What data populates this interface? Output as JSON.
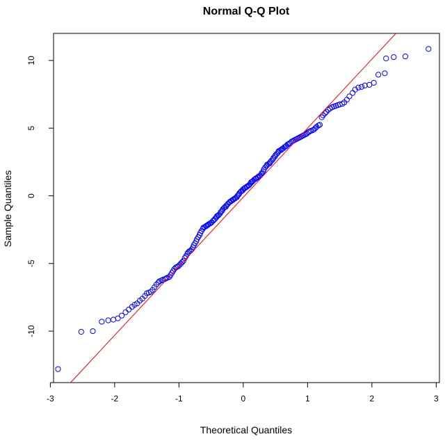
{
  "chart_data": {
    "type": "scatter",
    "title": "Normal Q-Q Plot",
    "xlabel": "Theoretical Quantiles",
    "ylabel": "Sample Quantiles",
    "xlim": [
      -2.95,
      3.05
    ],
    "ylim": [
      -13.8,
      12.0
    ],
    "x_ticks": [
      -3,
      -2,
      -1,
      0,
      1,
      2,
      3
    ],
    "y_ticks": [
      -10,
      -5,
      0,
      5,
      10
    ],
    "grid": false,
    "colors": {
      "points": "#0000ff",
      "line": "#ff0000",
      "axes": "#000000"
    },
    "reference_line": {
      "intercept": -0.1,
      "slope": 5.1
    },
    "series": [
      {
        "values": [
          [
            -2.88,
            -12.8
          ],
          [
            -2.52,
            -10.05
          ],
          [
            -2.34,
            -10.0
          ],
          [
            -2.2,
            -9.3
          ],
          [
            -2.1,
            -9.2
          ],
          [
            -2.02,
            -9.15
          ],
          [
            -1.95,
            -9.05
          ],
          [
            -1.89,
            -8.85
          ],
          [
            -1.83,
            -8.6
          ],
          [
            -1.78,
            -8.4
          ],
          [
            -1.73,
            -8.2
          ],
          [
            -1.69,
            -8.05
          ],
          [
            -1.65,
            -7.95
          ],
          [
            -1.61,
            -7.75
          ],
          [
            -1.57,
            -7.6
          ],
          [
            -1.53,
            -7.4
          ],
          [
            -1.5,
            -7.2
          ],
          [
            -1.47,
            -7.15
          ],
          [
            -1.44,
            -7.1
          ],
          [
            -1.41,
            -6.95
          ],
          [
            -1.38,
            -6.75
          ],
          [
            -1.35,
            -6.55
          ],
          [
            -1.32,
            -6.4
          ],
          [
            -1.3,
            -6.3
          ],
          [
            -1.27,
            -6.25
          ],
          [
            -1.25,
            -6.2
          ],
          [
            -1.22,
            -6.15
          ],
          [
            -1.2,
            -6.1
          ],
          [
            -1.18,
            -6.05
          ],
          [
            -1.15,
            -6.0
          ],
          [
            -1.13,
            -5.85
          ],
          [
            -1.11,
            -5.7
          ],
          [
            -1.09,
            -5.55
          ],
          [
            -1.07,
            -5.4
          ],
          [
            -1.05,
            -5.3
          ],
          [
            -1.03,
            -5.25
          ],
          [
            -1.01,
            -5.2
          ],
          [
            -0.99,
            -5.1
          ],
          [
            -0.97,
            -5.0
          ],
          [
            -0.95,
            -4.9
          ],
          [
            -0.93,
            -4.8
          ],
          [
            -0.91,
            -4.6
          ],
          [
            -0.89,
            -4.45
          ],
          [
            -0.87,
            -4.3
          ],
          [
            -0.86,
            -4.2
          ],
          [
            -0.84,
            -4.1
          ],
          [
            -0.82,
            -4.05
          ],
          [
            -0.8,
            -3.95
          ],
          [
            -0.78,
            -3.8
          ],
          [
            -0.77,
            -3.65
          ],
          [
            -0.75,
            -3.5
          ],
          [
            -0.73,
            -3.35
          ],
          [
            -0.72,
            -3.2
          ],
          [
            -0.7,
            -3.05
          ],
          [
            -0.68,
            -2.9
          ],
          [
            -0.67,
            -2.75
          ],
          [
            -0.65,
            -2.6
          ],
          [
            -0.63,
            -2.45
          ],
          [
            -0.62,
            -2.35
          ],
          [
            -0.6,
            -2.3
          ],
          [
            -0.58,
            -2.25
          ],
          [
            -0.57,
            -2.2
          ],
          [
            -0.55,
            -2.15
          ],
          [
            -0.54,
            -2.1
          ],
          [
            -0.52,
            -2.05
          ],
          [
            -0.5,
            -2.0
          ],
          [
            -0.49,
            -1.95
          ],
          [
            -0.47,
            -1.85
          ],
          [
            -0.46,
            -1.8
          ],
          [
            -0.44,
            -1.7
          ],
          [
            -0.42,
            -1.6
          ],
          [
            -0.41,
            -1.5
          ],
          [
            -0.39,
            -1.45
          ],
          [
            -0.38,
            -1.4
          ],
          [
            -0.36,
            -1.3
          ],
          [
            -0.35,
            -1.2
          ],
          [
            -0.33,
            -1.1
          ],
          [
            -0.32,
            -1.0
          ],
          [
            -0.3,
            -0.9
          ],
          [
            -0.29,
            -0.85
          ],
          [
            -0.27,
            -0.8
          ],
          [
            -0.26,
            -0.7
          ],
          [
            -0.24,
            -0.6
          ],
          [
            -0.22,
            -0.5
          ],
          [
            -0.21,
            -0.45
          ],
          [
            -0.19,
            -0.4
          ],
          [
            -0.18,
            -0.35
          ],
          [
            -0.16,
            -0.3
          ],
          [
            -0.15,
            -0.25
          ],
          [
            -0.13,
            -0.2
          ],
          [
            -0.12,
            -0.15
          ],
          [
            -0.1,
            -0.1
          ],
          [
            -0.09,
            0.0
          ],
          [
            -0.07,
            0.1
          ],
          [
            -0.06,
            0.2
          ],
          [
            -0.04,
            0.3
          ],
          [
            -0.03,
            0.35
          ],
          [
            -0.01,
            0.4
          ],
          [
            0.0,
            0.5
          ],
          [
            0.02,
            0.55
          ],
          [
            0.03,
            0.6
          ],
          [
            0.05,
            0.65
          ],
          [
            0.06,
            0.7
          ],
          [
            0.08,
            0.75
          ],
          [
            0.09,
            0.8
          ],
          [
            0.11,
            0.9
          ],
          [
            0.12,
            1.0
          ],
          [
            0.14,
            1.05
          ],
          [
            0.15,
            1.1
          ],
          [
            0.17,
            1.2
          ],
          [
            0.19,
            1.25
          ],
          [
            0.2,
            1.3
          ],
          [
            0.22,
            1.35
          ],
          [
            0.23,
            1.4
          ],
          [
            0.25,
            1.45
          ],
          [
            0.26,
            1.5
          ],
          [
            0.28,
            1.6
          ],
          [
            0.29,
            1.7
          ],
          [
            0.31,
            1.8
          ],
          [
            0.32,
            1.95
          ],
          [
            0.34,
            2.1
          ],
          [
            0.36,
            2.2
          ],
          [
            0.37,
            2.3
          ],
          [
            0.39,
            2.35
          ],
          [
            0.41,
            2.4
          ],
          [
            0.42,
            2.5
          ],
          [
            0.44,
            2.6
          ],
          [
            0.46,
            2.7
          ],
          [
            0.47,
            2.8
          ],
          [
            0.49,
            2.9
          ],
          [
            0.5,
            3.0
          ],
          [
            0.52,
            3.1
          ],
          [
            0.54,
            3.2
          ],
          [
            0.55,
            3.3
          ],
          [
            0.57,
            3.35
          ],
          [
            0.59,
            3.4
          ],
          [
            0.6,
            3.45
          ],
          [
            0.62,
            3.5
          ],
          [
            0.64,
            3.6
          ],
          [
            0.66,
            3.65
          ],
          [
            0.67,
            3.7
          ],
          [
            0.69,
            3.8
          ],
          [
            0.71,
            3.85
          ],
          [
            0.73,
            3.9
          ],
          [
            0.75,
            4.0
          ],
          [
            0.77,
            4.05
          ],
          [
            0.79,
            4.1
          ],
          [
            0.81,
            4.15
          ],
          [
            0.83,
            4.2
          ],
          [
            0.85,
            4.25
          ],
          [
            0.87,
            4.3
          ],
          [
            0.89,
            4.35
          ],
          [
            0.91,
            4.4
          ],
          [
            0.93,
            4.45
          ],
          [
            0.95,
            4.5
          ],
          [
            0.97,
            4.55
          ],
          [
            0.99,
            4.6
          ],
          [
            1.01,
            4.7
          ],
          [
            1.03,
            4.75
          ],
          [
            1.05,
            4.8
          ],
          [
            1.08,
            4.85
          ],
          [
            1.1,
            4.9
          ],
          [
            1.12,
            5.0
          ],
          [
            1.14,
            5.1
          ],
          [
            1.17,
            5.2
          ],
          [
            1.19,
            5.25
          ],
          [
            1.22,
            5.8
          ],
          [
            1.24,
            5.95
          ],
          [
            1.27,
            6.1
          ],
          [
            1.29,
            6.2
          ],
          [
            1.32,
            6.35
          ],
          [
            1.35,
            6.45
          ],
          [
            1.38,
            6.55
          ],
          [
            1.41,
            6.6
          ],
          [
            1.44,
            6.65
          ],
          [
            1.47,
            6.7
          ],
          [
            1.5,
            6.75
          ],
          [
            1.54,
            6.8
          ],
          [
            1.57,
            6.9
          ],
          [
            1.61,
            7.1
          ],
          [
            1.65,
            7.35
          ],
          [
            1.7,
            7.6
          ],
          [
            1.74,
            7.85
          ],
          [
            1.79,
            8.0
          ],
          [
            1.84,
            8.05
          ],
          [
            1.89,
            8.15
          ],
          [
            1.96,
            8.2
          ],
          [
            2.03,
            8.35
          ],
          [
            2.1,
            8.95
          ],
          [
            2.2,
            9.05
          ],
          [
            2.34,
            10.25
          ],
          [
            2.52,
            10.3
          ],
          [
            2.88,
            10.85
          ],
          [
            2.22,
            10.15
          ]
        ]
      }
    ]
  }
}
